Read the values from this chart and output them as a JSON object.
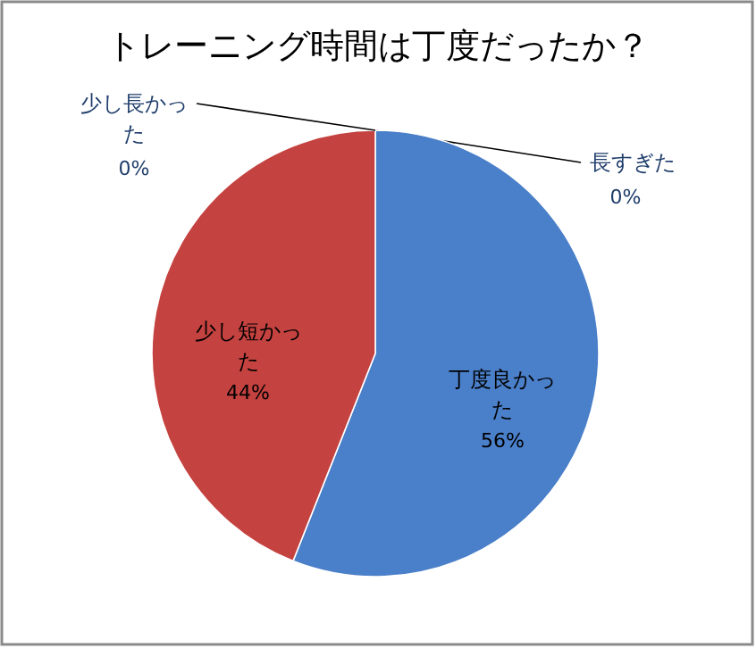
{
  "chart_data": {
    "type": "pie",
    "title": "トレーニング時間は丁度だったか？",
    "categories": [
      "長すぎた",
      "丁度良かった",
      "少し短かった",
      "少し長かった"
    ],
    "values": [
      0,
      56,
      44,
      0
    ],
    "colors": [
      "#8064a2",
      "#4a7fc9",
      "#c4423f",
      "#9bbb59"
    ],
    "value_labels": [
      "0%",
      "56%",
      "44%",
      "0%"
    ]
  }
}
